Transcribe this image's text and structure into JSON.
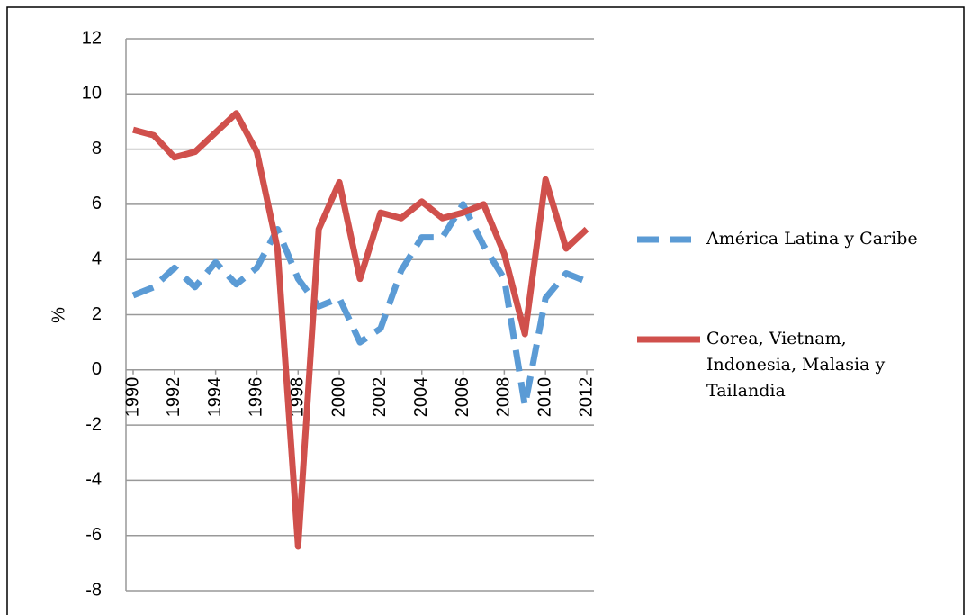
{
  "chart_data": {
    "type": "line",
    "y_label": "%",
    "x": [
      1990,
      1991,
      1992,
      1993,
      1994,
      1995,
      1996,
      1997,
      1998,
      1999,
      2000,
      2001,
      2002,
      2003,
      2004,
      2005,
      2006,
      2007,
      2008,
      2009,
      2010,
      2011,
      2012
    ],
    "xlim": [
      1990,
      2012
    ],
    "xticks": [
      1990,
      1992,
      1994,
      1996,
      1998,
      2000,
      2002,
      2004,
      2006,
      2008,
      2010,
      2012
    ],
    "ylim": [
      -8,
      12
    ],
    "yticks": [
      -8,
      -6,
      -4,
      -2,
      0,
      2,
      4,
      6,
      8,
      10,
      12
    ],
    "grid": true,
    "legend": "right",
    "series": [
      {
        "name": "América Latina y Caribe",
        "color": "#5b9bd5",
        "dashed": true,
        "values": [
          2.7,
          3.0,
          3.7,
          3.0,
          3.9,
          3.1,
          3.7,
          5.1,
          3.3,
          2.3,
          2.6,
          1.0,
          1.5,
          3.6,
          4.8,
          4.8,
          6.0,
          4.5,
          3.3,
          -1.3,
          2.6,
          3.5,
          3.2
        ]
      },
      {
        "name": "Corea, Vietnam, Indonesia, Malasia y Tailandia",
        "color": "#d0504c",
        "dashed": false,
        "values": [
          8.7,
          8.5,
          7.7,
          7.9,
          8.6,
          9.3,
          7.9,
          4.4,
          -6.4,
          5.1,
          6.8,
          3.3,
          5.7,
          5.5,
          6.1,
          5.5,
          5.7,
          6.0,
          4.2,
          1.3,
          6.9,
          4.4,
          5.1
        ]
      }
    ]
  }
}
